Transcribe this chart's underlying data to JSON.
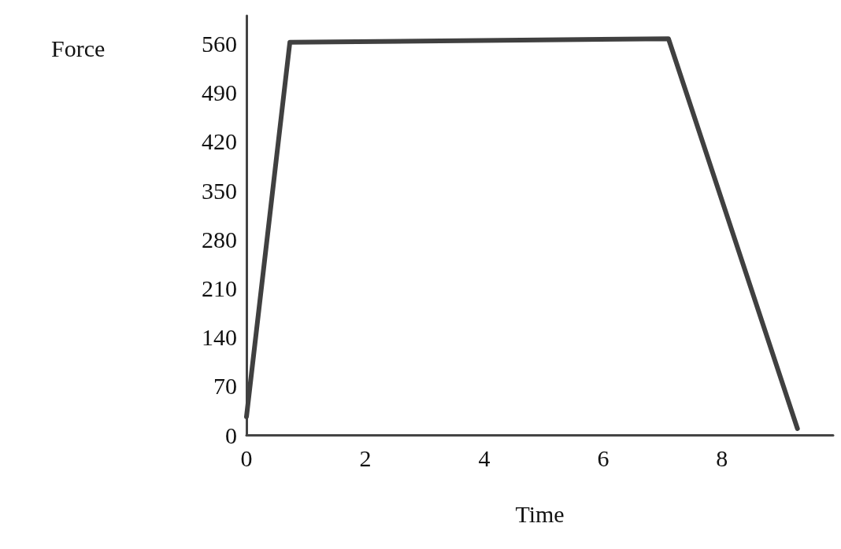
{
  "chart_data": {
    "type": "line",
    "xlabel": "Time",
    "ylabel": "Force",
    "x": [
      0,
      0.73,
      7.1,
      9.27
    ],
    "values": [
      26,
      562,
      567,
      9
    ],
    "color": "#404040",
    "xlim": [
      0,
      9.87
    ],
    "xticks": [
      0,
      2,
      4,
      6,
      8
    ],
    "ylim": [
      0,
      600
    ],
    "yticks": [
      0,
      70,
      140,
      210,
      280,
      350,
      420,
      490,
      560
    ],
    "grid": false,
    "marker": "none",
    "line_style": "solid"
  }
}
